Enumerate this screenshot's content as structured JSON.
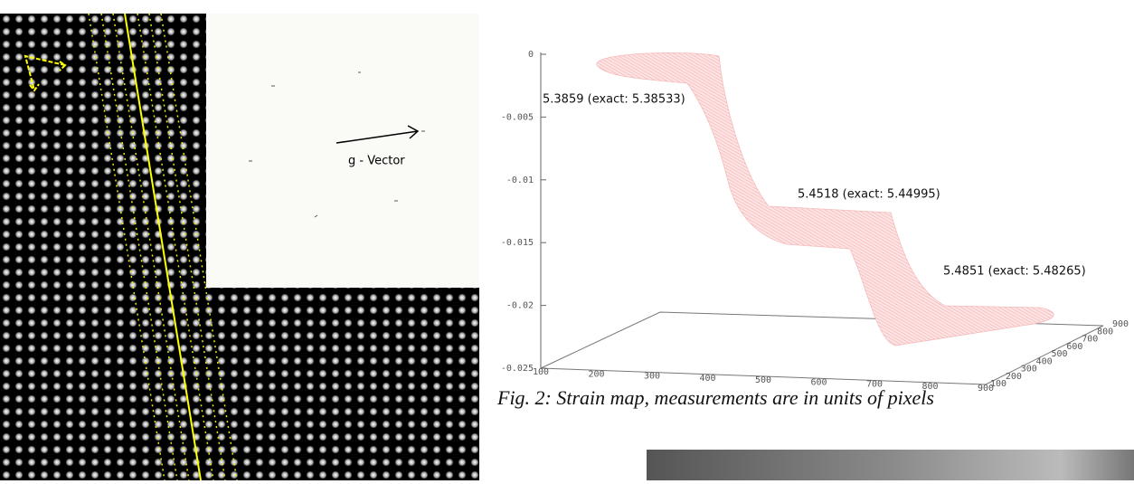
{
  "figure1": {
    "inset_label": "g - Vector"
  },
  "figure2": {
    "annotations": [
      "5.3859 (exact: 5.38533)",
      "5.4518 (exact: 5.44995)",
      "5.4851 (exact: 5.48265)"
    ],
    "z_ticks": [
      "0",
      "-0.005",
      "-0.01",
      "-0.015",
      "-0.02",
      "-0.025"
    ],
    "x_ticks": [
      "100",
      "200",
      "300",
      "400",
      "500",
      "600",
      "700",
      "800",
      "900"
    ],
    "y_ticks": [
      "100",
      "200",
      "300",
      "400",
      "500",
      "600",
      "700",
      "800",
      "900"
    ],
    "caption": "Fig. 2: Strain map, measurements are in units of pixels"
  }
}
